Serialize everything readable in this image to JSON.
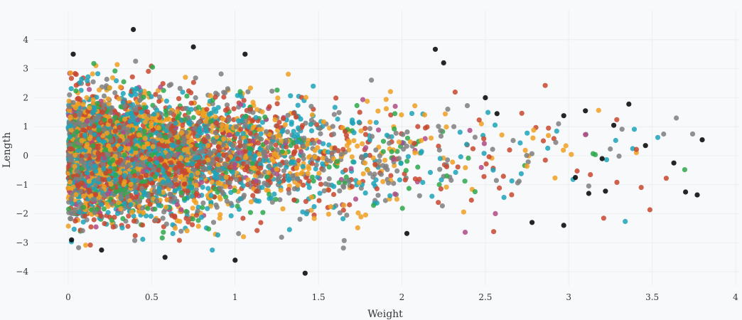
{
  "chart_data": {
    "type": "scatter",
    "title": "",
    "xlabel": "Weight",
    "ylabel": "Length",
    "xlim": [
      -0.3,
      4.0
    ],
    "ylim": [
      -4.7,
      4.8
    ],
    "xticks": [
      0,
      0.5,
      1,
      1.5,
      2,
      2.5,
      3,
      3.5,
      4
    ],
    "xtick_labels": [
      "0",
      "0.5",
      "1",
      "1.5",
      "2",
      "2.5",
      "3",
      "3.5",
      "4"
    ],
    "yticks": [
      -4,
      -3,
      -2,
      -1,
      0,
      1,
      2,
      3,
      4
    ],
    "ytick_labels": [
      "−4",
      "−3",
      "−2",
      "−1",
      "0",
      "1",
      "2",
      "3",
      "4"
    ],
    "grid": true,
    "legend": "none",
    "colors": [
      "#c8462e",
      "#f0a020",
      "#7f7f7f",
      "#1ca3b8",
      "#2ea84a",
      "#b04a85"
    ],
    "point_count_per_series": 1100,
    "x_distribution": "exponential, mean ~0.6, min 0",
    "y_distribution": "roughly normal, mean 0, sd ~1.05",
    "highlight_points": [
      {
        "x": 0.39,
        "y": 4.35,
        "color": "#f0a020"
      },
      {
        "x": 0.03,
        "y": 3.5,
        "color": "#7f7f7f"
      },
      {
        "x": 0.75,
        "y": 3.75,
        "color": "#1ca3b8"
      },
      {
        "x": 1.06,
        "y": 3.5,
        "color": "#1ca3b8"
      },
      {
        "x": 2.2,
        "y": 3.67,
        "color": "#c8462e"
      },
      {
        "x": 2.25,
        "y": 3.2,
        "color": "#1ca3b8"
      },
      {
        "x": 1.42,
        "y": -4.05,
        "color": "#1ca3b8"
      },
      {
        "x": 1.0,
        "y": -3.6,
        "color": "#7f7f7f"
      },
      {
        "x": 0.58,
        "y": -3.5,
        "color": "#f0a020"
      },
      {
        "x": 3.8,
        "y": 0.55,
        "color": "#1ca3b8"
      },
      {
        "x": 3.7,
        "y": -1.25,
        "color": "#7f7f7f"
      },
      {
        "x": 3.77,
        "y": -1.35,
        "color": "#f0a020"
      },
      {
        "x": 3.63,
        "y": -0.25,
        "color": "#f0a020"
      },
      {
        "x": 3.46,
        "y": 0.35,
        "color": "#b04a85"
      },
      {
        "x": 3.36,
        "y": 1.78,
        "color": "#f0a020"
      },
      {
        "x": 3.27,
        "y": 1.05,
        "color": "#7f7f7f"
      },
      {
        "x": 3.22,
        "y": -1.22,
        "color": "#1ca3b8"
      },
      {
        "x": 3.12,
        "y": -1.3,
        "color": "#f0a020"
      },
      {
        "x": 2.97,
        "y": -2.4,
        "color": "#1ca3b8"
      },
      {
        "x": 2.78,
        "y": -2.3,
        "color": "#c8462e"
      },
      {
        "x": 2.03,
        "y": -2.68,
        "color": "#7f7f7f"
      },
      {
        "x": 0.02,
        "y": -2.9,
        "color": "#1ca3b8"
      },
      {
        "x": 0.2,
        "y": -3.25,
        "color": "#f0a020"
      },
      {
        "x": 2.97,
        "y": 1.38,
        "color": "#1ca3b8"
      },
      {
        "x": 3.1,
        "y": 1.55,
        "color": "#1ca3b8"
      },
      {
        "x": 3.04,
        "y": -0.75,
        "color": "#7f7f7f"
      },
      {
        "x": 3.2,
        "y": -0.1,
        "color": "#1ca3b8"
      },
      {
        "x": 2.57,
        "y": 1.45,
        "color": "#c8462e"
      },
      {
        "x": 2.5,
        "y": 2.0,
        "color": "#1ca3b8"
      }
    ]
  }
}
